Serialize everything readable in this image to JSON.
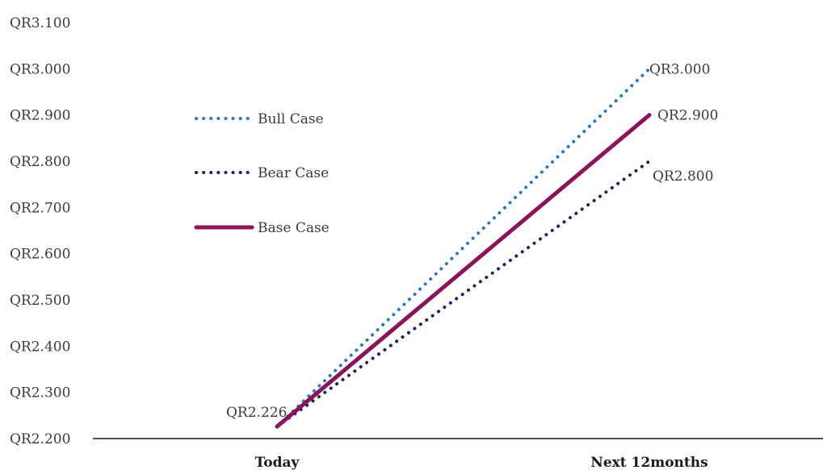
{
  "chart_data": {
    "type": "line",
    "categories": [
      "Today",
      "Next 12months"
    ],
    "series": [
      {
        "name": "Bull Case",
        "values": [
          2.226,
          3.0
        ],
        "color": "#2b78c2",
        "style": "dotted",
        "end_label": "QR3.000"
      },
      {
        "name": "Bear Case",
        "values": [
          2.226,
          2.8
        ],
        "color": "#14285a",
        "style": "dotted",
        "end_label": "QR2.800"
      },
      {
        "name": "Base Case",
        "values": [
          2.226,
          2.9
        ],
        "color": "#8a1459",
        "style": "solid",
        "end_label": "QR2.900"
      }
    ],
    "start_label": "QR2.226",
    "y_ticks": [
      "QR2.200",
      "QR2.300",
      "QR2.400",
      "QR2.500",
      "QR2.600",
      "QR2.700",
      "QR2.800",
      "QR2.900",
      "QR3.000",
      "QR3.100"
    ],
    "ylim": [
      2.2,
      3.1
    ],
    "grid": false,
    "legend_position": "top-left",
    "title": "",
    "xlabel": "",
    "ylabel": ""
  }
}
